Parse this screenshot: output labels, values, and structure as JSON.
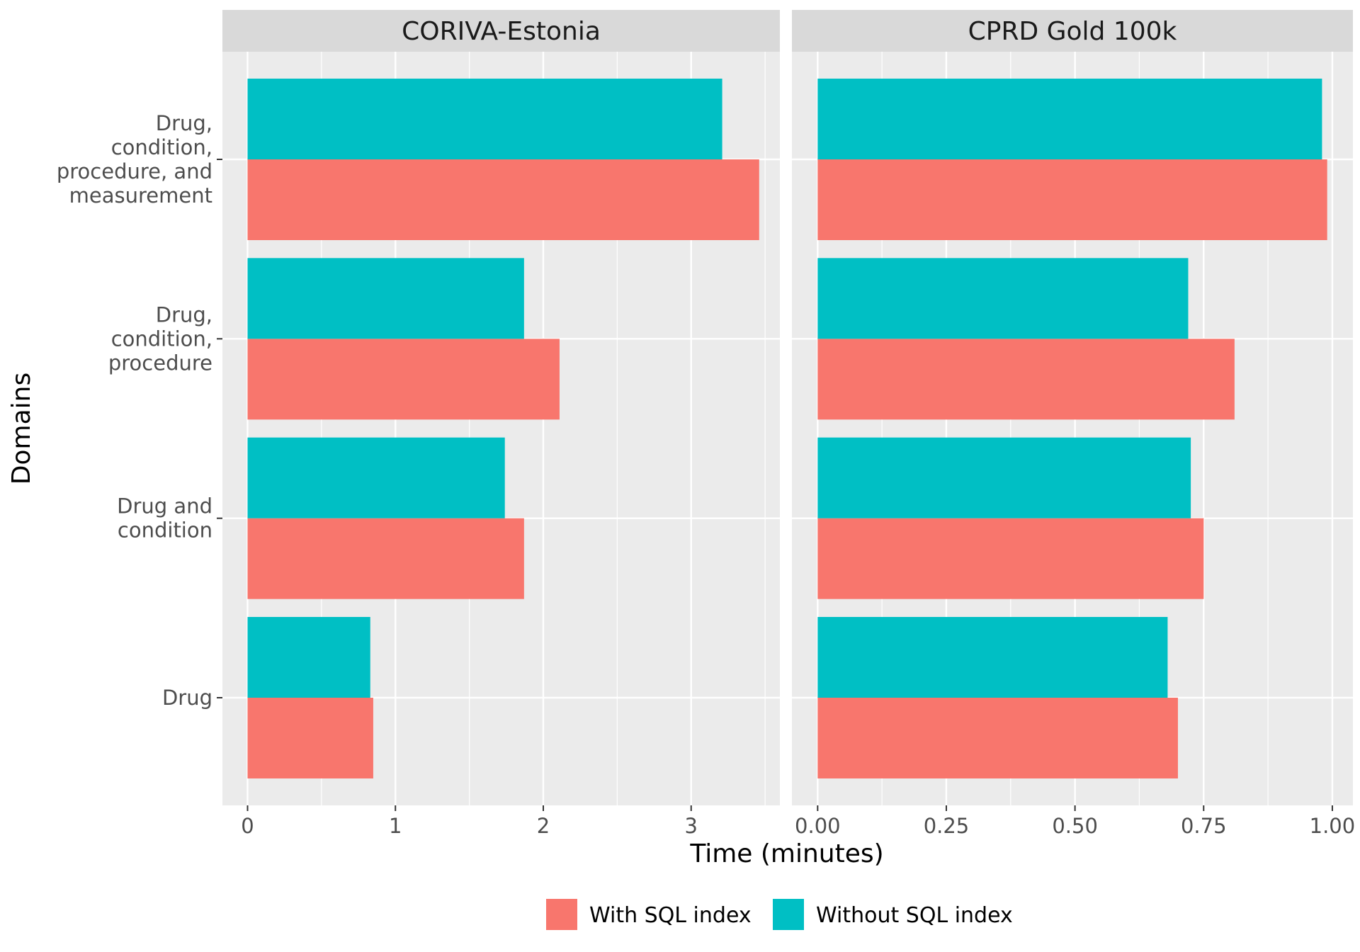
{
  "chart_data": {
    "type": "bar",
    "orientation": "horizontal",
    "facets": [
      {
        "title": "CORIVA-Estonia",
        "xlim": [
          -0.17,
          3.6
        ],
        "ticks": [
          0,
          1,
          2,
          3
        ],
        "tick_labels": [
          "0",
          "1",
          "2",
          "3"
        ],
        "categories": [
          "Drug",
          "Drug and condition",
          "Drug, condition, procedure",
          "Drug, condition, procedure, and measurement"
        ],
        "series": [
          {
            "name": "With SQL index",
            "values": [
              0.85,
              1.87,
              2.11,
              3.46
            ]
          },
          {
            "name": "Without SQL index",
            "values": [
              0.83,
              1.74,
              1.87,
              3.21
            ]
          }
        ]
      },
      {
        "title": "CPRD Gold 100k",
        "xlim": [
          -0.05,
          1.04
        ],
        "ticks": [
          0,
          0.25,
          0.5,
          0.75,
          1.0
        ],
        "tick_labels": [
          "0.00",
          "0.25",
          "0.50",
          "0.75",
          "1.00"
        ],
        "categories": [
          "Drug",
          "Drug and condition",
          "Drug, condition, procedure",
          "Drug, condition, procedure, and measurement"
        ],
        "series": [
          {
            "name": "With SQL index",
            "values": [
              0.7,
              0.75,
              0.81,
              0.99
            ]
          },
          {
            "name": "Without SQL index",
            "values": [
              0.68,
              0.725,
              0.72,
              0.98
            ]
          }
        ]
      }
    ],
    "category_labels": [
      [
        "Drug"
      ],
      [
        "Drug and",
        "condition"
      ],
      [
        "Drug,",
        "condition,",
        "procedure"
      ],
      [
        "Drug,",
        "condition,",
        "procedure, and",
        "measurement"
      ]
    ],
    "xlabel": "Time (minutes)",
    "ylabel": "Domains",
    "grid": true,
    "legend_position": "bottom",
    "legend": [
      {
        "name": "With SQL index",
        "color": "#F8766D"
      },
      {
        "name": "Without SQL index",
        "color": "#00BFC4"
      }
    ]
  },
  "colors": {
    "panel_background": "#EBEBEB",
    "strip_background": "#D9D9D9",
    "grid": "#FFFFFF",
    "with_index": "#F8766D",
    "without_index": "#00BFC4"
  }
}
